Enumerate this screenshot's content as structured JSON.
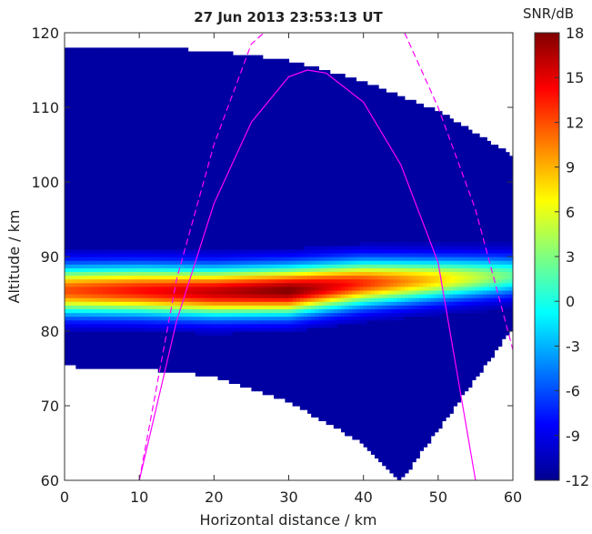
{
  "chart_data": {
    "type": "heatmap",
    "title": "27 Jun 2013 23:53:13 UT",
    "xlabel": "Horizontal distance / km",
    "ylabel": "Altitude / km",
    "xlim": [
      0,
      60
    ],
    "ylim": [
      60,
      120
    ],
    "xticks": [
      0,
      10,
      20,
      30,
      40,
      50,
      60
    ],
    "yticks": [
      60,
      70,
      80,
      90,
      100,
      110,
      120
    ],
    "grid": false,
    "colorbar": {
      "label": "SNR/dB",
      "range": [
        -12,
        18
      ],
      "ticks": [
        18,
        15,
        12,
        9,
        6,
        3,
        0,
        -3,
        -6,
        -9,
        -12
      ],
      "colormap": "jet"
    },
    "background_snr_db": -11,
    "data_region": {
      "x_range": [
        0,
        60
      ],
      "upper_boundary": [
        [
          0,
          118
        ],
        [
          10,
          118
        ],
        [
          20,
          117.6
        ],
        [
          30,
          116.3
        ],
        [
          40,
          113.5
        ],
        [
          50,
          109.5
        ],
        [
          60,
          103.5
        ]
      ],
      "lower_boundary": [
        [
          0,
          75.3
        ],
        [
          10,
          75
        ],
        [
          20,
          74
        ],
        [
          30,
          70.5
        ],
        [
          40,
          65
        ],
        [
          45,
          60
        ],
        [
          60,
          80.5
        ]
      ]
    },
    "echo_layer": [
      {
        "x": 0,
        "center_altitude": 85.5,
        "half_width": 3.5,
        "peak_snr_db": 12
      },
      {
        "x": 10,
        "center_altitude": 85.5,
        "half_width": 3.5,
        "peak_snr_db": 14
      },
      {
        "x": 20,
        "center_altitude": 85.3,
        "half_width": 3.5,
        "peak_snr_db": 16
      },
      {
        "x": 30,
        "center_altitude": 85.5,
        "half_width": 3.5,
        "peak_snr_db": 18
      },
      {
        "x": 40,
        "center_altitude": 86.5,
        "half_width": 3.3,
        "peak_snr_db": 13
      },
      {
        "x": 50,
        "center_altitude": 87,
        "half_width": 3,
        "peak_snr_db": 8
      },
      {
        "x": 60,
        "center_altitude": 87.5,
        "half_width": 2.8,
        "peak_snr_db": 2
      }
    ],
    "series": [
      {
        "style": "solid",
        "color": "#ff00ff",
        "points": [
          [
            10,
            60
          ],
          [
            15,
            81.4
          ],
          [
            20,
            97.1
          ],
          [
            25,
            108
          ],
          [
            30,
            114.1
          ],
          [
            32.5,
            115
          ],
          [
            35,
            114.6
          ],
          [
            40,
            110.7
          ],
          [
            45,
            102.3
          ],
          [
            50,
            89.2
          ],
          [
            55,
            60
          ]
        ]
      },
      {
        "style": "dashed",
        "color": "#ff00ff",
        "points": [
          [
            10,
            60
          ],
          [
            15,
            87
          ],
          [
            20,
            105
          ],
          [
            25,
            118.5
          ],
          [
            26.7,
            120
          ]
        ]
      },
      {
        "style": "dashed",
        "color": "#ff00ff",
        "points": [
          [
            45.5,
            120
          ],
          [
            50,
            110
          ],
          [
            55,
            96.3
          ],
          [
            60,
            77.5
          ],
          [
            60.5,
            73
          ]
        ]
      }
    ]
  }
}
